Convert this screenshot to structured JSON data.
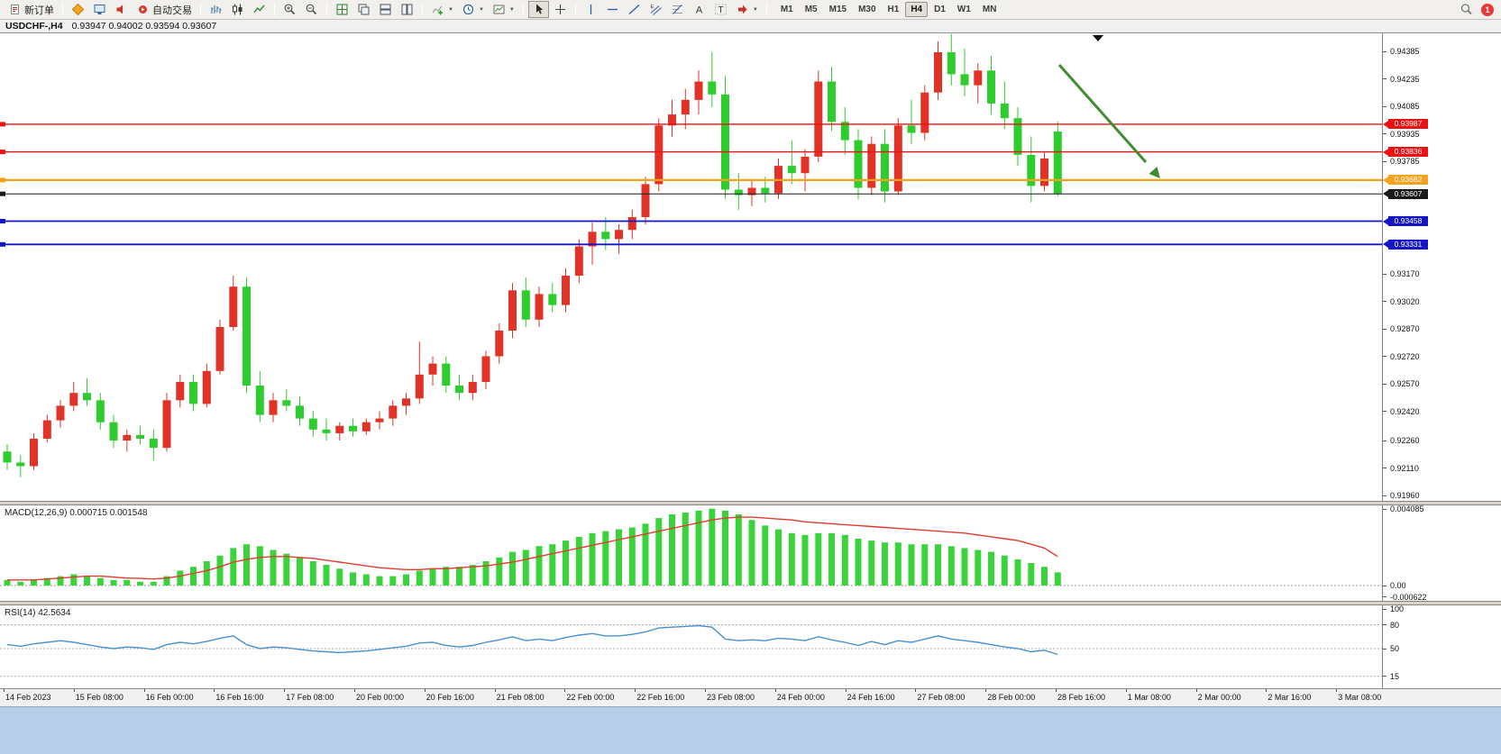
{
  "toolbar": {
    "new_order_label": "新订单",
    "auto_trading_label": "自动交易",
    "timeframes": [
      "M1",
      "M5",
      "M15",
      "M30",
      "H1",
      "H4",
      "D1",
      "W1",
      "MN"
    ],
    "active_timeframe": "H4",
    "notification_count": "1"
  },
  "window": {
    "title_symbol": "USDCHF-,H4",
    "title_ohlc": "0.93947 0.94002 0.93594 0.93607"
  },
  "chart_data": {
    "type": "candlestick",
    "symbol": "USDCHF",
    "timeframe": "H4",
    "up_color": "#e03226",
    "down_color": "#2ecc2e",
    "price_axis_ticks": [
      "0.94385",
      "0.94235",
      "0.94085",
      "0.93935",
      "0.93785",
      "0.93170",
      "0.93020",
      "0.92870",
      "0.92720",
      "0.92570",
      "0.92420",
      "0.92260",
      "0.92110",
      "0.91960"
    ],
    "horizontal_lines": [
      {
        "price": "0.93987",
        "value": 0.93987,
        "color": "#ee1111",
        "width": 1.4,
        "kind": "resistance-line"
      },
      {
        "price": "0.93836",
        "value": 0.93836,
        "color": "#ee1111",
        "width": 1.4,
        "kind": "resistance-line"
      },
      {
        "price": "0.93682",
        "value": 0.93682,
        "color": "#f7a21b",
        "width": 2.2,
        "kind": "pivot-line"
      },
      {
        "price": "0.93607",
        "value": 0.93607,
        "color": "#1a1a1a",
        "width": 1,
        "kind": "current-bid-line"
      },
      {
        "price": "0.93458",
        "value": 0.93458,
        "color": "#1515c8",
        "width": 1.8,
        "kind": "support-line"
      },
      {
        "price": "0.93331",
        "value": 0.93331,
        "color": "#1515c8",
        "width": 1.8,
        "kind": "support-line"
      }
    ],
    "arrow": {
      "color": "#3e8e2f",
      "meaning": "down-trend-annotation"
    },
    "candles": [
      [
        0.922,
        0.9224,
        0.921,
        0.9214
      ],
      [
        0.9214,
        0.9218,
        0.9206,
        0.9212
      ],
      [
        0.9212,
        0.923,
        0.921,
        0.9227
      ],
      [
        0.9227,
        0.924,
        0.9225,
        0.9237
      ],
      [
        0.9237,
        0.9248,
        0.9233,
        0.9245
      ],
      [
        0.9245,
        0.9258,
        0.9242,
        0.9252
      ],
      [
        0.9252,
        0.926,
        0.9245,
        0.9248
      ],
      [
        0.9248,
        0.9252,
        0.9232,
        0.9236
      ],
      [
        0.9236,
        0.924,
        0.9222,
        0.9226
      ],
      [
        0.9226,
        0.9232,
        0.922,
        0.9229
      ],
      [
        0.9229,
        0.9234,
        0.9224,
        0.9227
      ],
      [
        0.9227,
        0.9232,
        0.9215,
        0.9222
      ],
      [
        0.9222,
        0.9252,
        0.922,
        0.9248
      ],
      [
        0.9248,
        0.9262,
        0.9244,
        0.9258
      ],
      [
        0.9258,
        0.9262,
        0.9242,
        0.9246
      ],
      [
        0.9246,
        0.9268,
        0.9244,
        0.9264
      ],
      [
        0.9264,
        0.9292,
        0.9262,
        0.9288
      ],
      [
        0.9288,
        0.9316,
        0.9286,
        0.931
      ],
      [
        0.931,
        0.9315,
        0.9252,
        0.9256
      ],
      [
        0.9256,
        0.9264,
        0.9236,
        0.924
      ],
      [
        0.924,
        0.9252,
        0.9236,
        0.9248
      ],
      [
        0.9248,
        0.9254,
        0.9242,
        0.9245
      ],
      [
        0.9245,
        0.925,
        0.9234,
        0.9238
      ],
      [
        0.9238,
        0.9242,
        0.9228,
        0.9232
      ],
      [
        0.9232,
        0.9238,
        0.9226,
        0.923
      ],
      [
        0.923,
        0.9236,
        0.9226,
        0.9234
      ],
      [
        0.9234,
        0.9238,
        0.9228,
        0.9231
      ],
      [
        0.9231,
        0.9238,
        0.9229,
        0.9236
      ],
      [
        0.9236,
        0.9242,
        0.9232,
        0.9238
      ],
      [
        0.9238,
        0.9248,
        0.9234,
        0.9245
      ],
      [
        0.9245,
        0.9252,
        0.924,
        0.9249
      ],
      [
        0.9249,
        0.928,
        0.9246,
        0.9262
      ],
      [
        0.9262,
        0.9272,
        0.9256,
        0.9268
      ],
      [
        0.9268,
        0.9272,
        0.9252,
        0.9256
      ],
      [
        0.9256,
        0.9262,
        0.9248,
        0.9252
      ],
      [
        0.9252,
        0.9262,
        0.9248,
        0.9258
      ],
      [
        0.9258,
        0.9275,
        0.9254,
        0.9272
      ],
      [
        0.9272,
        0.929,
        0.9268,
        0.9286
      ],
      [
        0.9286,
        0.9312,
        0.9282,
        0.9308
      ],
      [
        0.9308,
        0.9315,
        0.9288,
        0.9292
      ],
      [
        0.9292,
        0.931,
        0.9288,
        0.9306
      ],
      [
        0.9306,
        0.9312,
        0.9296,
        0.93
      ],
      [
        0.93,
        0.932,
        0.9296,
        0.9316
      ],
      [
        0.9316,
        0.9336,
        0.9312,
        0.9332
      ],
      [
        0.9332,
        0.9345,
        0.9322,
        0.934
      ],
      [
        0.934,
        0.9348,
        0.933,
        0.9336
      ],
      [
        0.9336,
        0.9344,
        0.9328,
        0.9341
      ],
      [
        0.9341,
        0.9352,
        0.9336,
        0.9348
      ],
      [
        0.9348,
        0.937,
        0.9344,
        0.9366
      ],
      [
        0.9366,
        0.9402,
        0.9362,
        0.9398
      ],
      [
        0.9398,
        0.9412,
        0.9392,
        0.9404
      ],
      [
        0.9404,
        0.9418,
        0.9396,
        0.9412
      ],
      [
        0.9412,
        0.9428,
        0.9404,
        0.9422
      ],
      [
        0.9422,
        0.9438,
        0.9408,
        0.9415
      ],
      [
        0.9415,
        0.9425,
        0.9358,
        0.9363
      ],
      [
        0.9363,
        0.9372,
        0.9352,
        0.936
      ],
      [
        0.936,
        0.9368,
        0.9354,
        0.9364
      ],
      [
        0.9364,
        0.937,
        0.9356,
        0.9361
      ],
      [
        0.9361,
        0.938,
        0.9358,
        0.9376
      ],
      [
        0.9376,
        0.939,
        0.9366,
        0.9372
      ],
      [
        0.9372,
        0.9385,
        0.9362,
        0.9381
      ],
      [
        0.9381,
        0.9428,
        0.9378,
        0.9422
      ],
      [
        0.9422,
        0.943,
        0.9395,
        0.94
      ],
      [
        0.94,
        0.9408,
        0.9382,
        0.939
      ],
      [
        0.939,
        0.9396,
        0.9358,
        0.9364
      ],
      [
        0.9364,
        0.9392,
        0.936,
        0.9388
      ],
      [
        0.9388,
        0.9396,
        0.9356,
        0.9362
      ],
      [
        0.9362,
        0.9402,
        0.936,
        0.9398
      ],
      [
        0.9398,
        0.9412,
        0.9388,
        0.9394
      ],
      [
        0.9394,
        0.942,
        0.939,
        0.9416
      ],
      [
        0.9416,
        0.9444,
        0.9412,
        0.9438
      ],
      [
        0.9438,
        0.9448,
        0.942,
        0.9426
      ],
      [
        0.9426,
        0.944,
        0.9414,
        0.942
      ],
      [
        0.942,
        0.9432,
        0.941,
        0.9428
      ],
      [
        0.9428,
        0.9436,
        0.9404,
        0.941
      ],
      [
        0.941,
        0.9422,
        0.9396,
        0.9402
      ],
      [
        0.9402,
        0.9408,
        0.9376,
        0.9382
      ],
      [
        0.9382,
        0.9392,
        0.9356,
        0.9365
      ],
      [
        0.9365,
        0.9384,
        0.9362,
        0.938
      ],
      [
        0.93947,
        0.94002,
        0.93594,
        0.93607
      ]
    ],
    "macd": {
      "label": "MACD(12,26,9) 0.000715 0.001548",
      "color": "#3bd33b",
      "signal_color": "#e03c2e",
      "axis_ticks": [
        {
          "label": "0.004085",
          "v": 0.004085
        },
        {
          "label": "0.00",
          "v": 0
        },
        {
          "label": "-0.000622",
          "v": -0.000622
        }
      ],
      "values": [
        0.0003,
        0.0002,
        0.0003,
        0.0004,
        0.0005,
        0.0006,
        0.0005,
        0.0004,
        0.0003,
        0.0003,
        0.0002,
        0.0002,
        0.0005,
        0.0008,
        0.001,
        0.0013,
        0.0016,
        0.002,
        0.0022,
        0.0021,
        0.0019,
        0.0017,
        0.0015,
        0.0013,
        0.0011,
        0.0009,
        0.0007,
        0.0006,
        0.0005,
        0.0005,
        0.0006,
        0.0008,
        0.0009,
        0.001,
        0.001,
        0.0011,
        0.0013,
        0.0015,
        0.0018,
        0.0019,
        0.0021,
        0.0022,
        0.0024,
        0.0026,
        0.0028,
        0.0029,
        0.003,
        0.0031,
        0.0033,
        0.0036,
        0.0038,
        0.0039,
        0.004,
        0.0041,
        0.004,
        0.0038,
        0.0035,
        0.0032,
        0.003,
        0.0028,
        0.0027,
        0.0028,
        0.0028,
        0.0027,
        0.0025,
        0.0024,
        0.0023,
        0.0023,
        0.0022,
        0.0022,
        0.0022,
        0.0021,
        0.002,
        0.0019,
        0.0018,
        0.0016,
        0.0014,
        0.0012,
        0.001,
        0.0007
      ],
      "signal": [
        0.0003,
        0.0003,
        0.0003,
        0.00035,
        0.0004,
        0.00045,
        0.0005,
        0.0005,
        0.00045,
        0.0004,
        0.00038,
        0.00035,
        0.0004,
        0.0005,
        0.00065,
        0.0008,
        0.001,
        0.00125,
        0.0014,
        0.0015,
        0.00155,
        0.00155,
        0.0015,
        0.00145,
        0.00135,
        0.00125,
        0.00115,
        0.00105,
        0.00095,
        0.0009,
        0.00085,
        0.00085,
        0.0009,
        0.0009,
        0.00095,
        0.001,
        0.00105,
        0.00115,
        0.00125,
        0.0014,
        0.00155,
        0.0017,
        0.00185,
        0.002,
        0.00215,
        0.0023,
        0.00245,
        0.0026,
        0.00275,
        0.0029,
        0.00305,
        0.0032,
        0.00335,
        0.0035,
        0.0036,
        0.00365,
        0.00365,
        0.0036,
        0.00355,
        0.0035,
        0.0034,
        0.00335,
        0.0033,
        0.00325,
        0.0032,
        0.00315,
        0.0031,
        0.00305,
        0.003,
        0.00295,
        0.0029,
        0.00285,
        0.0028,
        0.0027,
        0.0026,
        0.0025,
        0.0024,
        0.0022,
        0.002,
        0.00155
      ]
    },
    "rsi": {
      "label": "RSI(14) 42.5634",
      "color": "#4a90d2",
      "levels": [
        80,
        50,
        15
      ],
      "axis_ticks": [
        {
          "label": "100",
          "v": 100
        },
        {
          "label": "80",
          "v": 80
        },
        {
          "label": "50",
          "v": 50
        },
        {
          "label": "15",
          "v": 15
        }
      ],
      "values": [
        55,
        53,
        56,
        58,
        60,
        58,
        55,
        52,
        50,
        52,
        51,
        49,
        55,
        58,
        56,
        59,
        63,
        66,
        55,
        50,
        52,
        51,
        49,
        47,
        46,
        45,
        46,
        47,
        49,
        51,
        53,
        57,
        58,
        54,
        52,
        54,
        58,
        61,
        65,
        60,
        62,
        60,
        64,
        67,
        69,
        66,
        66,
        68,
        71,
        76,
        77,
        78,
        79,
        77,
        62,
        60,
        61,
        60,
        63,
        62,
        60,
        65,
        61,
        58,
        54,
        59,
        55,
        60,
        58,
        62,
        66,
        62,
        60,
        58,
        55,
        52,
        50,
        46,
        48,
        42.6
      ]
    },
    "time_axis": [
      "14 Feb 2023",
      "15 Feb 08:00",
      "16 Feb 00:00",
      "16 Feb 16:00",
      "17 Feb 08:00",
      "20 Feb 00:00",
      "20 Feb 16:00",
      "21 Feb 08:00",
      "22 Feb 00:00",
      "22 Feb 16:00",
      "23 Feb 08:00",
      "24 Feb 00:00",
      "24 Feb 16:00",
      "27 Feb 08:00",
      "28 Feb 00:00",
      "28 Feb 16:00",
      "1 Mar 08:00",
      "2 Mar 00:00",
      "2 Mar 16:00",
      "3 Mar 08:00"
    ]
  }
}
